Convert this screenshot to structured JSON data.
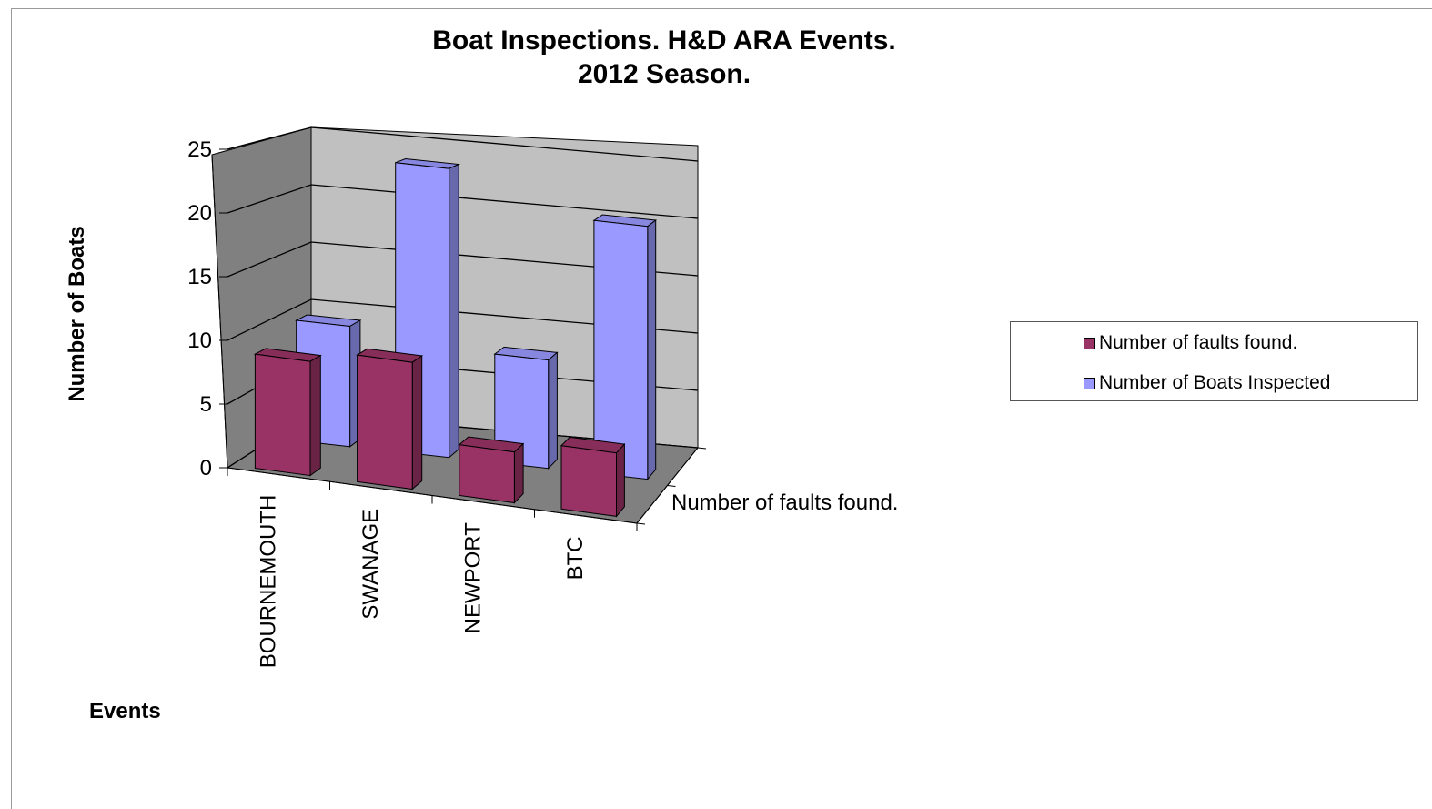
{
  "chart_data": {
    "type": "bar",
    "title_lines": [
      "Boat Inspections. H&D ARA Events.",
      "2012 Season."
    ],
    "xlabel": "Events",
    "ylabel": "Number of Boats",
    "zlabel": "Number of faults found.",
    "categories": [
      "BOURNEMOUTH",
      "SWANAGE",
      "NEWPORT",
      "BTC"
    ],
    "ylim": [
      0,
      25
    ],
    "yticks": [
      0,
      5,
      10,
      15,
      20,
      25
    ],
    "grid": true,
    "legend_position": "right",
    "three_d": true,
    "series": [
      {
        "name": "Number of faults found.",
        "values": [
          9,
          10,
          4,
          5
        ],
        "color": "#993366"
      },
      {
        "name": "Number of Boats Inspected",
        "values": [
          10,
          24,
          9,
          21
        ],
        "color": "#9999ff"
      }
    ]
  }
}
